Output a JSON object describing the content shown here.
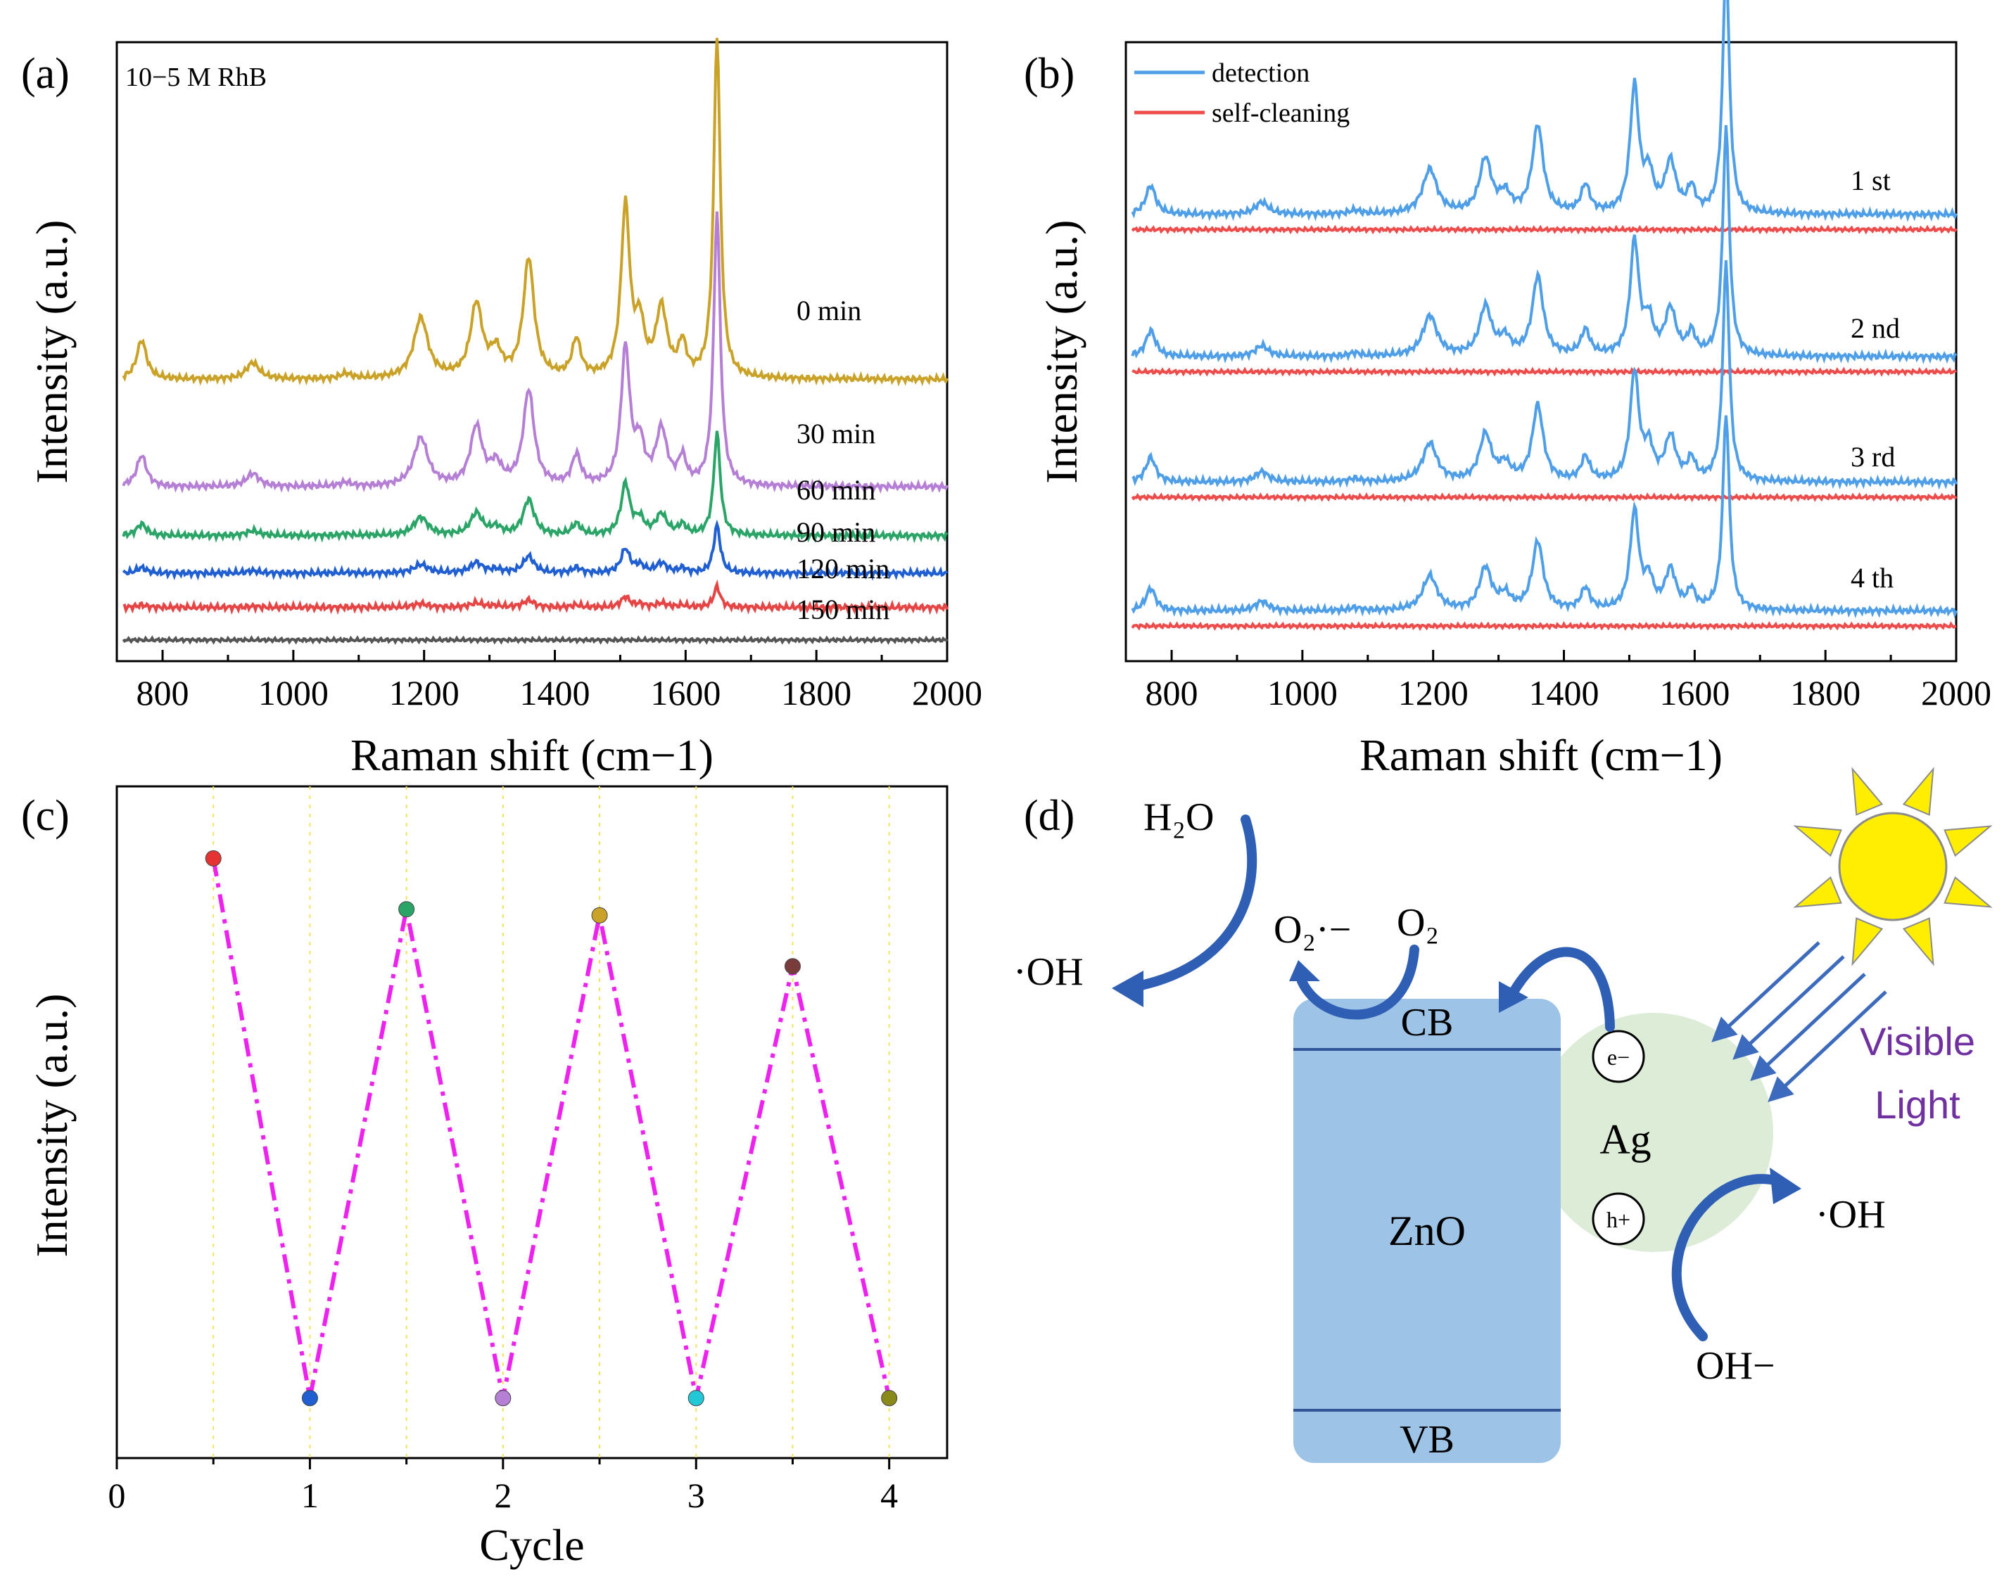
{
  "panels": {
    "a": {
      "label": "(a)",
      "annotation": "10−5 M RhB",
      "xlabel": "Raman shift (cm−1)",
      "ylabel": "Intensity (a.u.)"
    },
    "b": {
      "label": "(b)",
      "xlabel": "Raman shift (cm−1)",
      "ylabel": "Intensity (a.u.)"
    },
    "c": {
      "label": "(c)",
      "xlabel": "Cycle",
      "ylabel": "Intensity (a.u.)"
    },
    "d": {
      "label": "(d)"
    }
  },
  "chart_data": [
    {
      "id": "a",
      "type": "line",
      "title": "",
      "annotation": "10−5 M RhB",
      "xlabel": "Raman shift (cm−1)",
      "ylabel": "Intensity (a.u.)",
      "xlim": [
        730,
        2000
      ],
      "xticks": [
        800,
        1000,
        1200,
        1400,
        1600,
        1800,
        2000
      ],
      "peaks": [
        {
          "x": 768,
          "h": 0.24,
          "w": 9
        },
        {
          "x": 938,
          "h": 0.1,
          "w": 12
        },
        {
          "x": 1080,
          "h": 0.03,
          "w": 10
        },
        {
          "x": 1195,
          "h": 0.37,
          "w": 13
        },
        {
          "x": 1280,
          "h": 0.45,
          "w": 11
        },
        {
          "x": 1310,
          "h": 0.15,
          "w": 10
        },
        {
          "x": 1360,
          "h": 0.73,
          "w": 10
        },
        {
          "x": 1433,
          "h": 0.23,
          "w": 8
        },
        {
          "x": 1508,
          "h": 1.05,
          "w": 8
        },
        {
          "x": 1530,
          "h": 0.3,
          "w": 8
        },
        {
          "x": 1563,
          "h": 0.42,
          "w": 10
        },
        {
          "x": 1595,
          "h": 0.2,
          "w": 7
        },
        {
          "x": 1648,
          "h": 2.1,
          "w": 6
        }
      ],
      "series": [
        {
          "name": "0 min",
          "color": "#c9a227",
          "baseline": 1.53,
          "scale": 1.0
        },
        {
          "name": "30 min",
          "color": "#b57fd6",
          "baseline": 0.87,
          "scale": 0.8
        },
        {
          "name": "60 min",
          "color": "#2ba567",
          "baseline": 0.57,
          "scale": 0.3
        },
        {
          "name": "90 min",
          "color": "#1f5fd1",
          "baseline": 0.34,
          "scale": 0.14
        },
        {
          "name": "120 min",
          "color": "#e64545",
          "baseline": 0.13,
          "scale": 0.06
        },
        {
          "name": "150 min",
          "color": "#555555",
          "baseline": -0.07,
          "scale": 0.0
        }
      ],
      "ylim": [
        -0.2,
        3.6
      ],
      "yticks": "none"
    },
    {
      "id": "b",
      "type": "line",
      "xlabel": "Raman shift (cm−1)",
      "ylabel": "Intensity (a.u.)",
      "xlim": [
        730,
        2000
      ],
      "xticks": [
        800,
        1000,
        1200,
        1400,
        1600,
        1800,
        2000
      ],
      "legend": {
        "position": "top-left",
        "entries": [
          {
            "name": "detection",
            "color": "#4f9fe8"
          },
          {
            "name": "self-cleaning",
            "color": "#ee4b4b"
          }
        ]
      },
      "cycles": [
        {
          "name": "1 st",
          "detection_baseline": 2.57,
          "self_cleaning_baseline": 2.48,
          "scale": 0.72
        },
        {
          "name": "2 nd",
          "detection_baseline": 1.72,
          "self_cleaning_baseline": 1.63,
          "scale": 0.65
        },
        {
          "name": "3 rd",
          "detection_baseline": 0.97,
          "self_cleaning_baseline": 0.88,
          "scale": 0.62
        },
        {
          "name": "4 th",
          "detection_baseline": 0.2,
          "self_cleaning_baseline": 0.11,
          "scale": 0.56
        }
      ],
      "ylim": [
        -0.1,
        3.6
      ],
      "yticks": "none"
    },
    {
      "id": "c",
      "type": "line",
      "xlabel": "Cycle",
      "ylabel": "Intensity (a.u.)",
      "xlim": [
        0,
        4.3
      ],
      "xticks": [
        0,
        1,
        2,
        3,
        4
      ],
      "ylim": [
        0,
        1.12
      ],
      "line_color": "#ee22ee",
      "gridlines": [
        0.5,
        1,
        1.5,
        2,
        2.5,
        3,
        3.5,
        4
      ],
      "points": [
        {
          "x": 0.5,
          "y": 1.0,
          "color": "#e53333"
        },
        {
          "x": 1.0,
          "y": 0.1,
          "color": "#1f5fd1"
        },
        {
          "x": 1.5,
          "y": 0.915,
          "color": "#2ba567"
        },
        {
          "x": 2.0,
          "y": 0.1,
          "color": "#b57fd6"
        },
        {
          "x": 2.5,
          "y": 0.905,
          "color": "#c9a227"
        },
        {
          "x": 3.0,
          "y": 0.1,
          "color": "#22c8d6"
        },
        {
          "x": 3.5,
          "y": 0.82,
          "color": "#7a3b3b"
        },
        {
          "x": 4.0,
          "y": 0.1,
          "color": "#8a8a1a"
        }
      ]
    }
  ],
  "diagram": {
    "zno": "ZnO",
    "cb": "CB",
    "vb": "VB",
    "ag": "Ag",
    "electron": "e−",
    "hole": "h+",
    "h2o": "H₂O",
    "oh_left": "·OH",
    "o2_radical": "O₂·−",
    "o2": "O₂",
    "oh_right": "·OH",
    "oh_minus": "OH−",
    "light_line1": "Visible",
    "light_line2": "Light",
    "colors": {
      "zno": "#9dc3e6",
      "ag": "#d9ead3",
      "arrow": "#3c6bbd",
      "sun": "#ffee00",
      "light": "#7030a0"
    }
  }
}
